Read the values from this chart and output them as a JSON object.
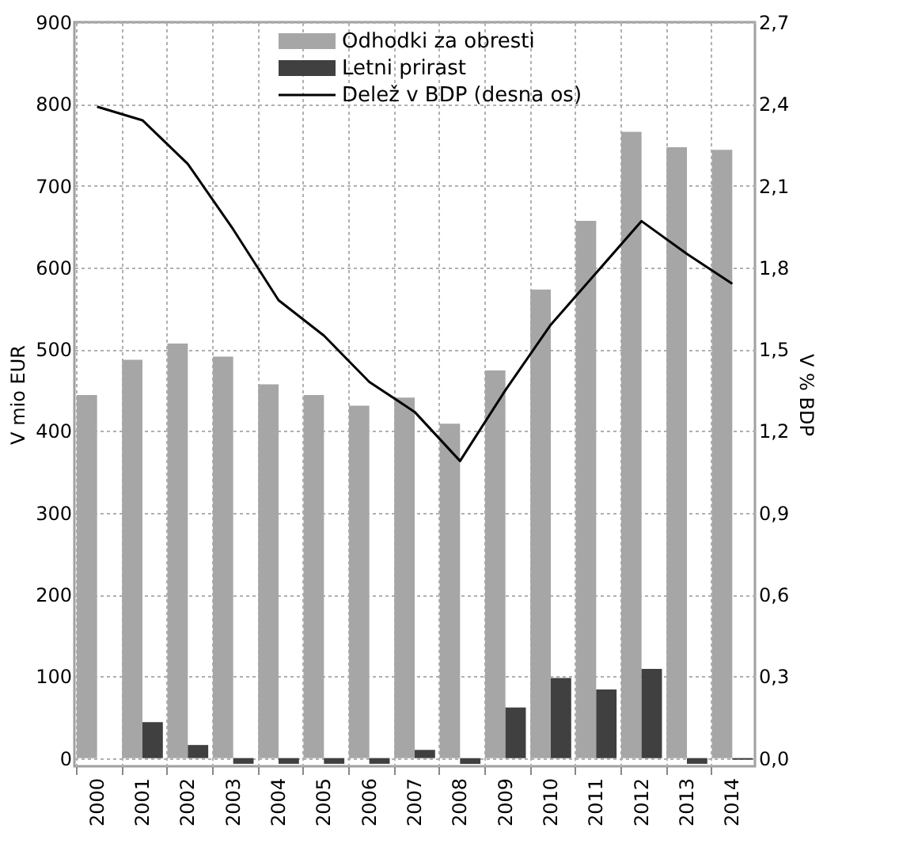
{
  "chart_data": {
    "type": "bar",
    "categories": [
      "2000",
      "2001",
      "2002",
      "2003",
      "2004",
      "2005",
      "2006",
      "2007",
      "2008",
      "2009",
      "2010",
      "2011",
      "2012",
      "2013",
      "2014"
    ],
    "series": [
      {
        "name": "Odhodki za obresti",
        "color": "#a6a6a6",
        "values": [
          444,
          487,
          507,
          491,
          457,
          444,
          431,
          441,
          409,
          474,
          573,
          657,
          766,
          747,
          744
        ]
      },
      {
        "name": "Letni prirast",
        "color": "#404040",
        "values": [
          null,
          44,
          16,
          -7,
          -7,
          -7,
          -7,
          10,
          -7,
          62,
          98,
          84,
          109,
          -7,
          -2
        ]
      },
      {
        "name": "Delež v BDP (desna os)",
        "type": "line",
        "axis": "y2",
        "color": "#000000",
        "values": [
          2.39,
          2.34,
          2.18,
          1.94,
          1.68,
          1.55,
          1.38,
          1.27,
          1.09,
          1.35,
          1.59,
          1.78,
          1.97,
          1.85,
          1.74
        ]
      }
    ],
    "ylabel": "V mio EUR",
    "y2label": "V % BDP",
    "ylim": [
      -10,
      900
    ],
    "yticks": [
      0,
      100,
      200,
      300,
      400,
      500,
      600,
      700,
      800,
      900
    ],
    "y2lim": [
      -0.03,
      2.7
    ],
    "y2ticks": [
      {
        "value": 0,
        "label": "0,0"
      },
      {
        "value": 0.3,
        "label": "0,3"
      },
      {
        "value": 0.6,
        "label": "0,6"
      },
      {
        "value": 0.9,
        "label": "0,9"
      },
      {
        "value": 1.2,
        "label": "1,2"
      },
      {
        "value": 1.5,
        "label": "1,5"
      },
      {
        "value": 1.8,
        "label": "1,8"
      },
      {
        "value": 2.1,
        "label": "2,1"
      },
      {
        "value": 2.4,
        "label": "2,4"
      },
      {
        "value": 2.7,
        "label": "2,7"
      }
    ],
    "grid": true,
    "legend": "top",
    "marker": "none",
    "line_style": "solid"
  }
}
